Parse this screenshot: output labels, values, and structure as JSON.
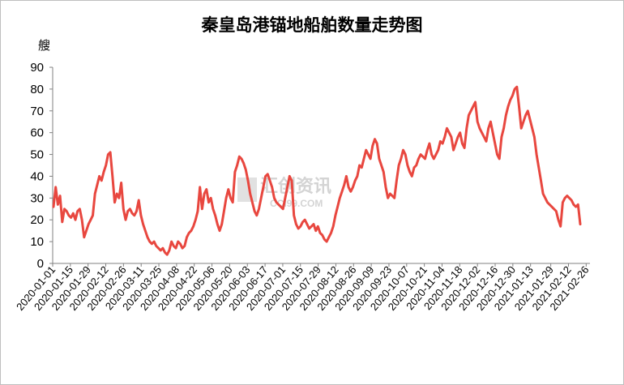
{
  "chart_data": {
    "type": "line",
    "title": "秦皇岛港锚地船舶数量走势图",
    "ylabel": "艘",
    "xlabel": "",
    "ylim": [
      0,
      90
    ],
    "yticks": [
      0,
      10,
      20,
      30,
      40,
      50,
      60,
      70,
      80,
      90
    ],
    "xtick_labels": [
      "2020-01-01",
      "2020-01-15",
      "2020-01-29",
      "2020-02-12",
      "2020-02-26",
      "2020-03-11",
      "2020-03-25",
      "2020-04-08",
      "2020-04-22",
      "2020-05-06",
      "2020-05-20",
      "2020-06-03",
      "2020-06-17",
      "2020-07-01",
      "2020-07-15",
      "2020-07-29",
      "2020-08-12",
      "2020-08-26",
      "2020-09-09",
      "2020-09-23",
      "2020-10-07",
      "2020-10-21",
      "2020-11-04",
      "2020-11-18",
      "2020-12-02",
      "2020-12-16",
      "2020-12-30",
      "2021-01-13",
      "2021-01-29",
      "2021-02-12",
      "2021-02-26"
    ],
    "grid": false,
    "legend": "none",
    "series": [
      {
        "color": "#e8473f",
        "x_start": "2020-01-01",
        "x_end": "2021-03-01",
        "values": [
          26,
          35,
          27,
          31,
          19,
          25,
          24,
          22,
          21,
          23,
          20,
          24,
          25,
          20,
          12,
          15,
          18,
          20,
          22,
          32,
          36,
          40,
          38,
          42,
          45,
          50,
          51,
          40,
          28,
          32,
          30,
          37,
          25,
          20,
          24,
          25,
          23,
          22,
          24,
          29,
          22,
          18,
          15,
          12,
          10,
          9,
          10,
          8,
          7,
          6,
          7,
          5,
          4,
          6,
          10,
          8,
          7,
          10,
          9,
          7,
          8,
          12,
          14,
          15,
          17,
          20,
          24,
          35,
          25,
          32,
          34,
          28,
          30,
          25,
          22,
          18,
          15,
          18,
          24,
          30,
          34,
          30,
          28,
          42,
          45,
          49,
          48,
          46,
          43,
          38,
          32,
          28,
          24,
          22,
          25,
          30,
          35,
          40,
          41,
          38,
          35,
          30,
          28,
          27,
          26,
          25,
          30,
          35,
          40,
          38,
          22,
          18,
          16,
          17,
          19,
          20,
          18,
          16,
          17,
          18,
          15,
          17,
          14,
          13,
          11,
          10,
          12,
          14,
          17,
          22,
          26,
          30,
          33,
          36,
          40,
          35,
          33,
          35,
          38,
          40,
          45,
          44,
          48,
          52,
          50,
          48,
          54,
          57,
          55,
          48,
          45,
          42,
          35,
          30,
          32,
          31,
          30,
          38,
          45,
          48,
          52,
          50,
          45,
          42,
          40,
          44,
          45,
          48,
          50,
          49,
          48,
          52,
          55,
          50,
          48,
          50,
          52,
          56,
          55,
          58,
          62,
          60,
          58,
          52,
          55,
          58,
          60,
          55,
          53,
          62,
          68,
          70,
          72,
          74,
          65,
          62,
          60,
          58,
          56,
          62,
          65,
          60,
          55,
          50,
          48,
          58,
          62,
          68,
          72,
          75,
          77,
          80,
          81,
          72,
          62,
          65,
          68,
          70,
          66,
          62,
          58,
          50,
          44,
          38,
          32,
          30,
          28,
          27,
          26,
          25,
          24,
          20,
          17,
          28,
          30,
          31,
          30,
          29,
          27,
          26,
          27,
          18
        ]
      }
    ]
  },
  "watermark": {
    "text": "汇创资讯",
    "subtext": "CCI99.COM"
  }
}
